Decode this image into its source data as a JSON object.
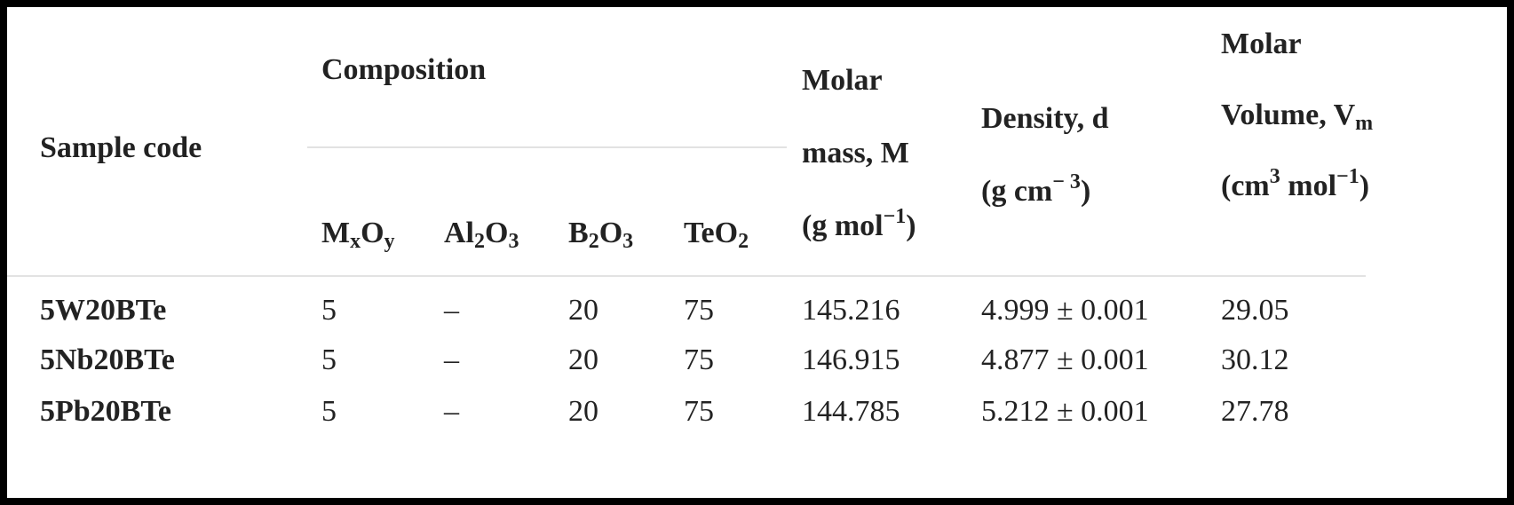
{
  "table": {
    "header": {
      "sample_code": "Sample code",
      "composition": "Composition",
      "components": [
        [
          "M",
          "x",
          "O",
          "y"
        ],
        [
          "Al",
          "2",
          "O",
          "3"
        ],
        [
          "B",
          "2",
          "O",
          "3"
        ],
        [
          "TeO",
          "2"
        ]
      ],
      "molar_mass": [
        "Molar mass, M",
        "(g mol",
        "−1",
        ")"
      ],
      "density": [
        "Density, d",
        "(g cm",
        "− 3",
        ")"
      ],
      "molar_volume": [
        "Molar Volume, V",
        "m",
        " (cm",
        "3",
        " mol",
        "−1",
        ")"
      ]
    },
    "rows": [
      [
        "5W20BTe",
        "5",
        "–",
        "20",
        "75",
        "145.216",
        "4.999 ± 0.001",
        "29.05"
      ],
      [
        "5Nb20BTe",
        "5",
        "–",
        "20",
        "75",
        "146.915",
        "4.877 ± 0.001",
        "30.12"
      ],
      [
        "5Pb20BTe",
        "5",
        "–",
        "20",
        "75",
        "144.785",
        "5.212 ± 0.001",
        "27.78"
      ]
    ]
  }
}
